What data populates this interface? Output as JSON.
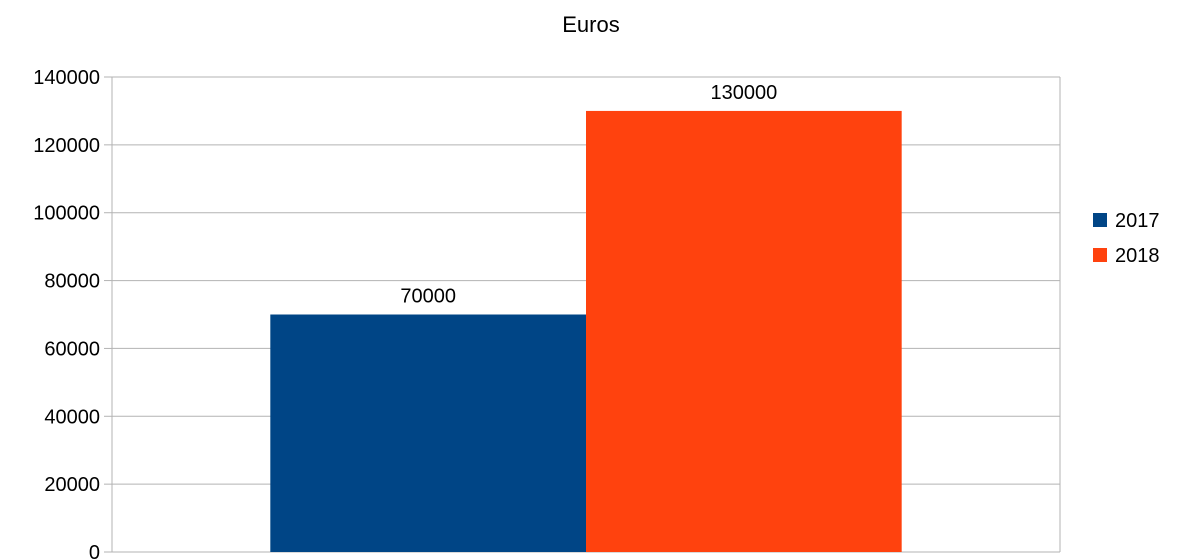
{
  "chart_data": {
    "type": "bar",
    "title": "Euros",
    "xlabel": "",
    "ylabel": "",
    "categories": [
      ""
    ],
    "series": [
      {
        "name": "2017",
        "values": [
          70000
        ],
        "color": "#004586"
      },
      {
        "name": "2018",
        "values": [
          130000
        ],
        "color": "#ff420e"
      }
    ],
    "ylim": [
      0,
      140000
    ],
    "yticks": [
      0,
      20000,
      40000,
      60000,
      80000,
      100000,
      120000,
      140000
    ],
    "ytick_labels": [
      "0",
      "20000",
      "40000",
      "60000",
      "80000",
      "100000",
      "120000",
      "140000"
    ],
    "data_labels": [
      "70000",
      "130000"
    ],
    "grid": true,
    "legend": "right"
  }
}
